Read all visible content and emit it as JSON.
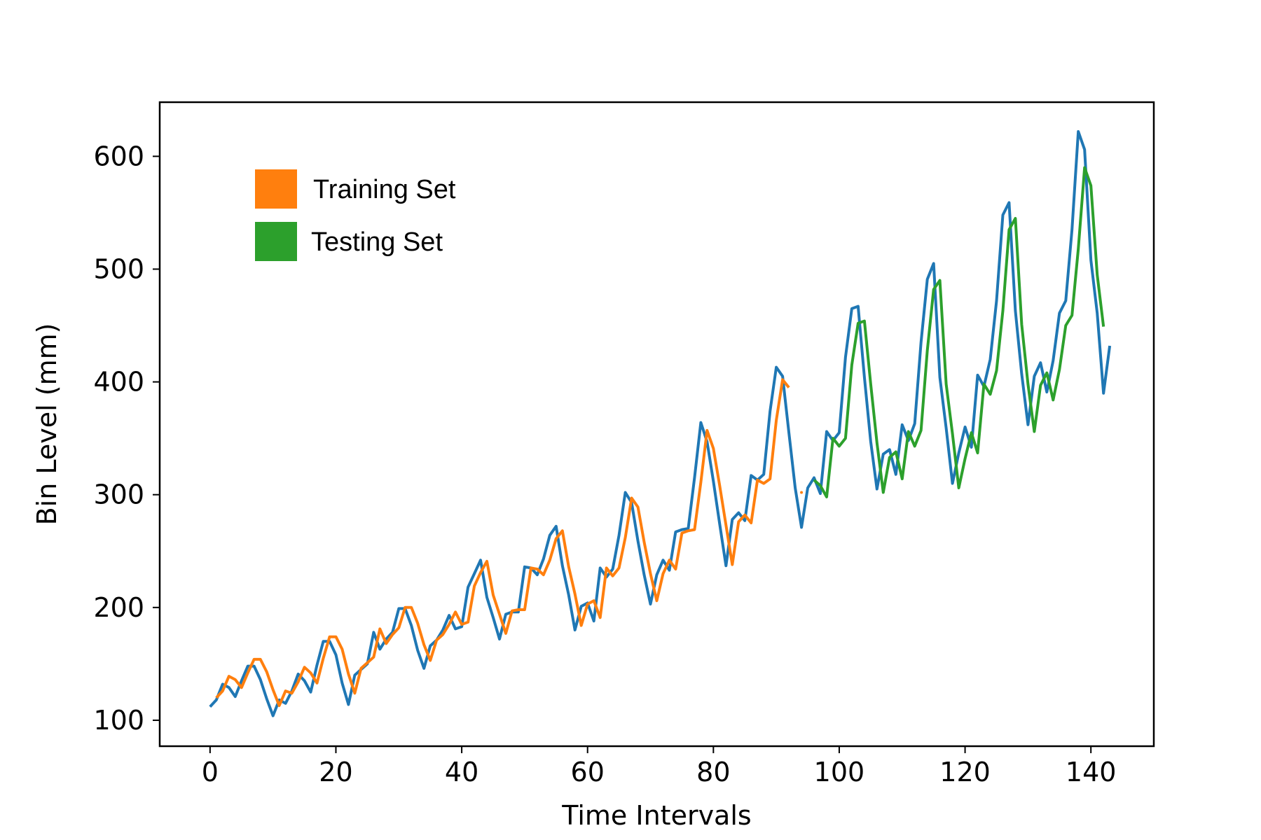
{
  "chart_data": {
    "type": "line",
    "title": "",
    "xlabel": "Time Intervals",
    "ylabel": "Bin Level (mm)",
    "xlim": [
      -8,
      150
    ],
    "ylim": [
      77,
      648
    ],
    "xticks": [
      0,
      20,
      40,
      60,
      80,
      100,
      120,
      140
    ],
    "yticks": [
      100,
      200,
      300,
      400,
      500,
      600
    ],
    "grid": false,
    "legend_position": "top-left",
    "legend": [
      {
        "label": "Training Set",
        "color": "#ff7f0e"
      },
      {
        "label": "Testing Set",
        "color": "#2ca02c"
      }
    ],
    "series": [
      {
        "color": "#1f77b4",
        "x_start": 0,
        "values": [
          112,
          118,
          132,
          129,
          121,
          135,
          148,
          148,
          136,
          119,
          104,
          118,
          115,
          126,
          141,
          135,
          125,
          149,
          170,
          170,
          158,
          133,
          114,
          140,
          145,
          150,
          178,
          163,
          172,
          178,
          199,
          199,
          184,
          162,
          146,
          166,
          171,
          180,
          193,
          181,
          183,
          218,
          230,
          242,
          209,
          191,
          172,
          194,
          196,
          196,
          236,
          235,
          229,
          243,
          264,
          272,
          237,
          211,
          180,
          201,
          204,
          188,
          235,
          227,
          234,
          264,
          302,
          293,
          259,
          229,
          203,
          229,
          242,
          233,
          267,
          269,
          270,
          315,
          364,
          347,
          312,
          274,
          237,
          278,
          284,
          277,
          317,
          313,
          318,
          374,
          413,
          405,
          355,
          306,
          271,
          306,
          315,
          301,
          356,
          348,
          355,
          422,
          465,
          467,
          404,
          347,
          305,
          336,
          340,
          318,
          362,
          348,
          363,
          435,
          491,
          505,
          404,
          359,
          310,
          337,
          360,
          342,
          406,
          396,
          420,
          472,
          548,
          559,
          463,
          407,
          362,
          405,
          417,
          391,
          419,
          461,
          472,
          535,
          622,
          606,
          508,
          461,
          390,
          432
        ]
      },
      {
        "color": "#ff7f0e",
        "x_start": 1,
        "values": [
          120,
          126,
          139,
          136,
          129,
          142,
          154,
          154,
          143,
          127,
          113,
          126,
          124,
          134,
          147,
          142,
          133,
          155,
          174,
          174,
          163,
          141,
          124,
          146,
          151,
          156,
          181,
          168,
          176,
          182,
          200,
          200,
          186,
          167,
          153,
          171,
          176,
          185,
          196,
          185,
          187,
          219,
          231,
          241,
          211,
          194,
          177,
          197,
          198,
          198,
          235,
          234,
          229,
          242,
          261,
          268,
          236,
          212,
          184,
          203,
          206,
          191,
          235,
          228,
          235,
          262,
          297,
          289,
          258,
          230,
          206,
          230,
          242,
          234,
          266,
          268,
          269,
          311,
          357,
          341,
          308,
          273,
          238,
          276,
          282,
          275,
          313,
          310,
          314,
          366,
          402,
          395
        ]
      },
      {
        "color": "#ff7f0e",
        "x_start": 94,
        "values": [
          302
        ]
      },
      {
        "color": "#2ca02c",
        "x_start": 96,
        "values": [
          313,
          308,
          298,
          350,
          343,
          350,
          415,
          452,
          454,
          398,
          346,
          302,
          333,
          338,
          314,
          356,
          343,
          357,
          428,
          482,
          490,
          398,
          354,
          306,
          332,
          355,
          337,
          398,
          389,
          410,
          463,
          535,
          545,
          451,
          398,
          356,
          397,
          408,
          384,
          411,
          450,
          459,
          518,
          590,
          574,
          495,
          449
        ]
      }
    ]
  }
}
